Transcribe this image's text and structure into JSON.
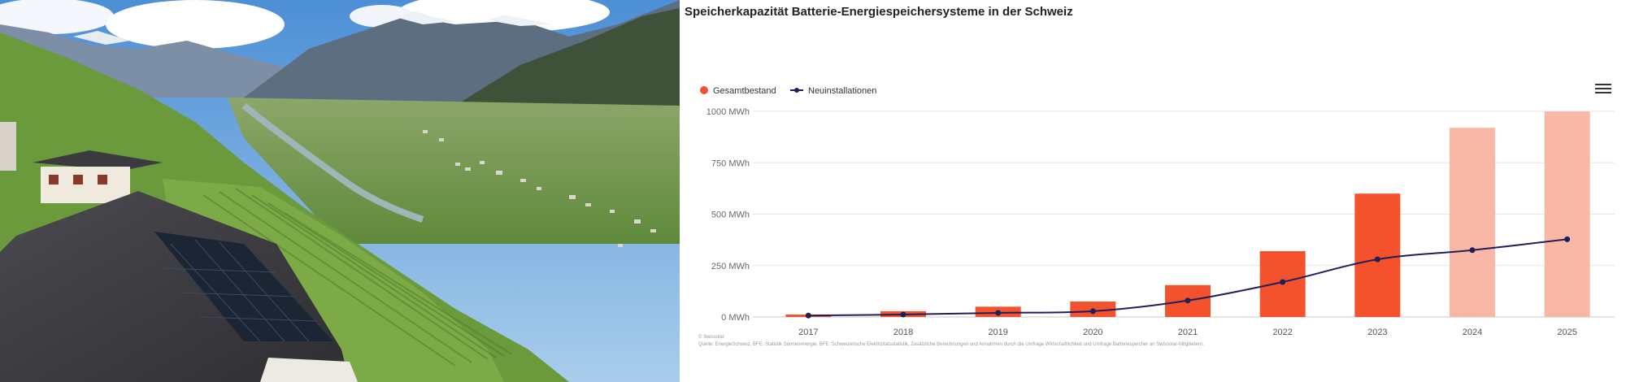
{
  "photo": {
    "description_icon": "landscape-photo-icon"
  },
  "chart_data": {
    "type": "bar",
    "title": "Speicherkapazität Batterie-Energiespeichersysteme in der Schweiz",
    "categories": [
      "2017",
      "2018",
      "2019",
      "2020",
      "2021",
      "2022",
      "2023",
      "2024",
      "2025"
    ],
    "series": [
      {
        "name": "Gesamtbestand",
        "type": "bar",
        "values": [
          12,
          28,
          50,
          75,
          155,
          320,
          600,
          920,
          1000
        ],
        "colors": [
          "#F4522D",
          "#F4522D",
          "#F4522D",
          "#F4522D",
          "#F4522D",
          "#F4522D",
          "#F4522D",
          "#F9B8A6",
          "#F9B8A6"
        ]
      },
      {
        "name": "Neuinstallationen",
        "type": "line",
        "values": [
          7,
          12,
          20,
          28,
          80,
          170,
          280,
          325,
          378
        ],
        "color": "#1F1F5C"
      }
    ],
    "y_ticks": [
      "0 MWh",
      "250 MWh",
      "500 MWh",
      "750 MWh",
      "1000 MWh"
    ],
    "ylim": [
      0,
      1000
    ],
    "grid": true,
    "legend_position": "top-left"
  },
  "footnote": {
    "copyright": "© Swissolar",
    "source": "Quelle: EnergieSchweiz, BFE: Statistik Sonnenenergie, BFE: Schweizerische Elektrizitätsstatistik, Zusätzliche Berechnungen und Annahmen durch die Umfrage Wirtschaftlichkeit und Umfrage Batteriespeicher an Swissolar-Mitgliedern."
  },
  "menu": {
    "icon": "hamburger-menu-icon"
  }
}
